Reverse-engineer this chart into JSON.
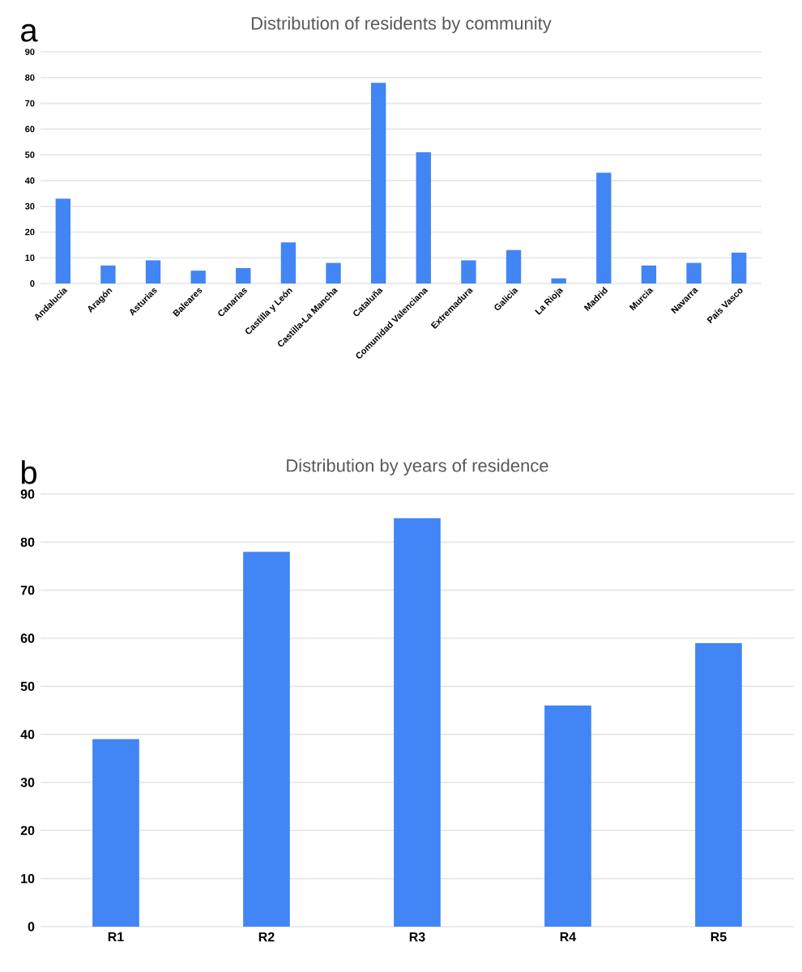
{
  "chart_data": [
    {
      "type": "bar",
      "title": "Distribution of residents by community",
      "annotations": [
        "a"
      ],
      "categories": [
        "Andalucía",
        "Aragón",
        "Asturias",
        "Baleares",
        "Canarias",
        "Castilla y León",
        "Castilla-La Mancha",
        "Cataluña",
        "Comunidad Valenciana",
        "Extremadura",
        "Galicia",
        "La Rioja",
        "Madrid",
        "Murcia",
        "Navarra",
        "País Vasco"
      ],
      "values": [
        33,
        7,
        9,
        5,
        6,
        16,
        8,
        78,
        51,
        9,
        13,
        2,
        43,
        7,
        8,
        12
      ],
      "color": "#4285f4",
      "ylim": [
        0,
        90
      ],
      "yticks": [
        0,
        10,
        20,
        30,
        40,
        50,
        60,
        70,
        80,
        90
      ],
      "grid": "y"
    },
    {
      "type": "bar",
      "title": "Distribution by years of residence",
      "annotations": [
        "b"
      ],
      "categories": [
        "R1",
        "R2",
        "R3",
        "R4",
        "R5"
      ],
      "values": [
        39,
        78,
        85,
        46,
        59
      ],
      "color": "#4285f4",
      "ylim": [
        0,
        90
      ],
      "yticks": [
        0,
        10,
        20,
        30,
        40,
        50,
        60,
        70,
        80,
        90
      ],
      "grid": "y"
    }
  ]
}
